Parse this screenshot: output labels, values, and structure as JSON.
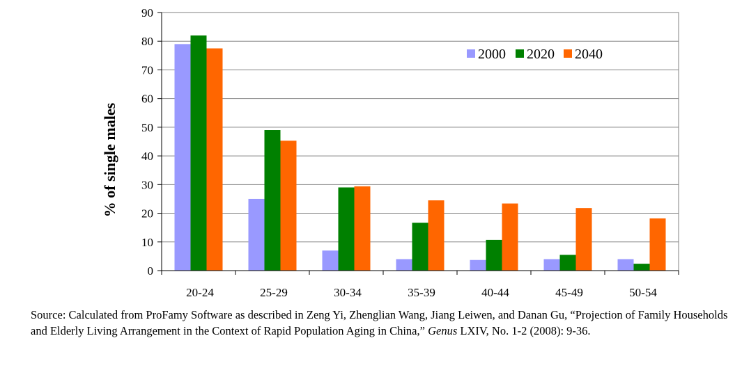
{
  "chart_data": {
    "type": "bar",
    "title": "",
    "xlabel": "",
    "ylabel": "% of single males",
    "categories": [
      "20-24",
      "25-29",
      "30-34",
      "35-39",
      "40-44",
      "45-49",
      "50-54"
    ],
    "series": [
      {
        "name": "2000",
        "color": "#9999ff",
        "values": [
          79,
          25,
          7,
          4,
          3.7,
          4,
          4
        ]
      },
      {
        "name": "2020",
        "color": "#008000",
        "values": [
          82,
          49,
          29,
          16.7,
          10.7,
          5.5,
          2.4
        ]
      },
      {
        "name": "2040",
        "color": "#ff6600",
        "values": [
          77.5,
          45.3,
          29.4,
          24.5,
          23.4,
          21.8,
          18.2
        ]
      }
    ],
    "ylim": [
      0,
      90
    ],
    "yticks": [
      0,
      10,
      20,
      30,
      40,
      50,
      60,
      70,
      80,
      90
    ],
    "grid": true,
    "legend_position": "top-right"
  },
  "source": {
    "prefix": "Source: Calculated from ProFamy Software as described in Zeng Yi, Zhenglian Wang, Jiang Leiwen, and Danan Gu, “Projection of Family Households and Elderly Living Arrangement in the Context of Rapid Population Aging in China,” ",
    "journal": "Genus",
    "suffix": " LXIV, No. 1-2 (2008): 9-36."
  }
}
